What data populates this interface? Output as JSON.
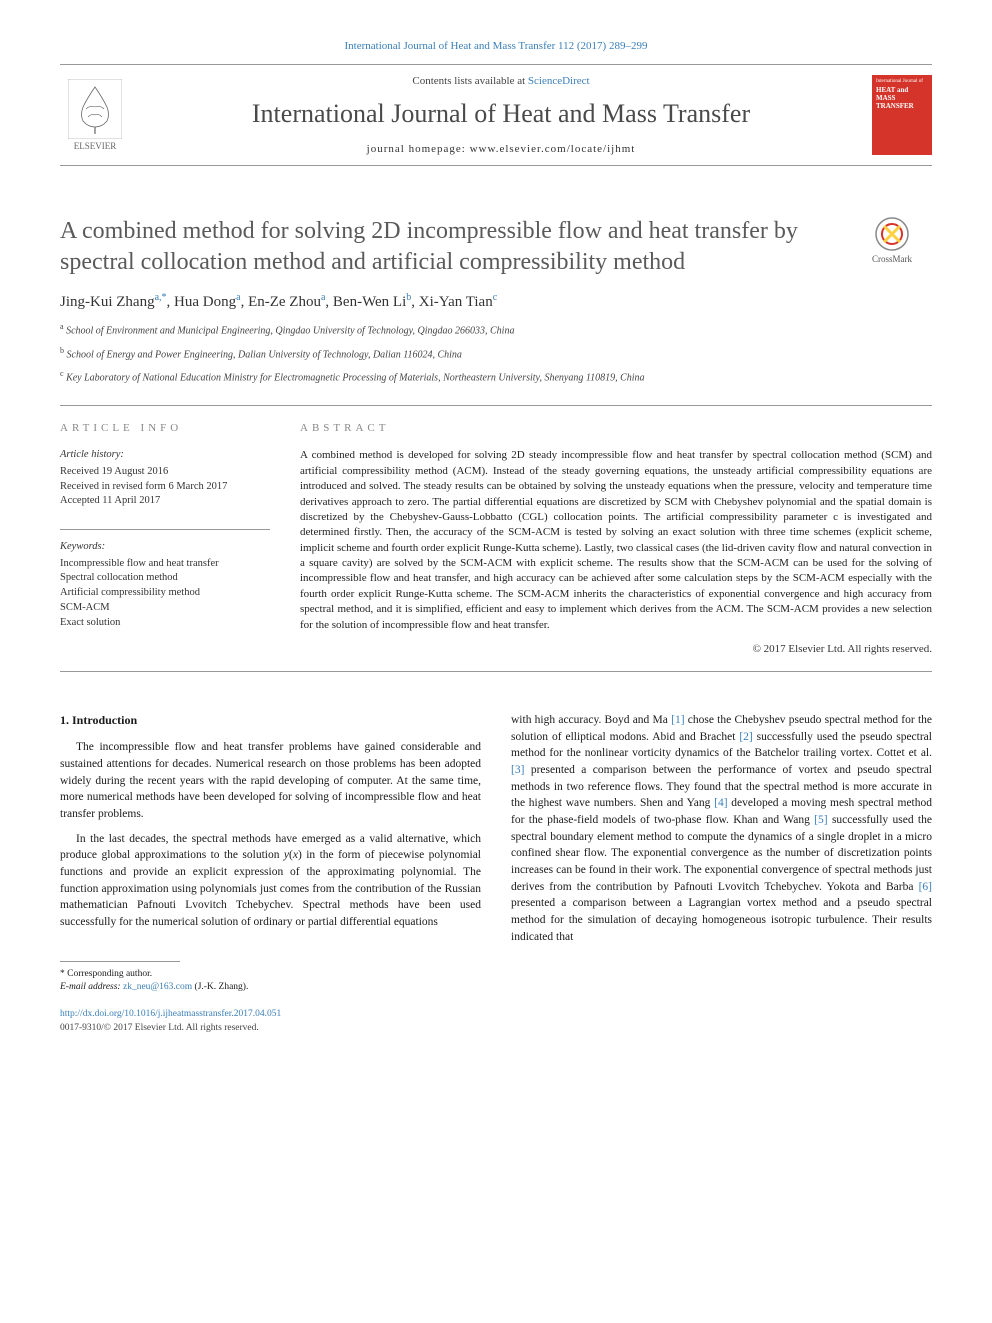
{
  "top_citation": "International Journal of Heat and Mass Transfer 112 (2017) 289–299",
  "header": {
    "contents_prefix": "Contents lists available at ",
    "contents_link": "ScienceDirect",
    "journal_name": "International Journal of Heat and Mass Transfer",
    "homepage_prefix": "journal homepage: ",
    "homepage_url": "www.elsevier.com/locate/ijhmt",
    "elsevier_label": "ELSEVIER",
    "cover_top": "International Journal of",
    "cover_line1": "HEAT and MASS",
    "cover_line2": "TRANSFER"
  },
  "crossmark_label": "CrossMark",
  "article": {
    "title": "A combined method for solving 2D incompressible flow and heat transfer by spectral collocation method and artificial compressibility method",
    "authors_html": "Jing-Kui Zhang|a,*|, Hua Dong|a|, En-Ze Zhou|a|, Ben-Wen Li|b|, Xi-Yan Tian|c|",
    "affiliations": [
      {
        "sup": "a",
        "text": "School of Environment and Municipal Engineering, Qingdao University of Technology, Qingdao 266033, China"
      },
      {
        "sup": "b",
        "text": "School of Energy and Power Engineering, Dalian University of Technology, Dalian 116024, China"
      },
      {
        "sup": "c",
        "text": "Key Laboratory of National Education Ministry for Electromagnetic Processing of Materials, Northeastern University, Shenyang 110819, China"
      }
    ]
  },
  "info": {
    "label": "ARTICLE INFO",
    "history_label": "Article history:",
    "history": [
      "Received 19 August 2016",
      "Received in revised form 6 March 2017",
      "Accepted 11 April 2017"
    ],
    "keywords_label": "Keywords:",
    "keywords": [
      "Incompressible flow and heat transfer",
      "Spectral collocation method",
      "Artificial compressibility method",
      "SCM-ACM",
      "Exact solution"
    ]
  },
  "abstract": {
    "label": "ABSTRACT",
    "text": "A combined method is developed for solving 2D steady incompressible flow and heat transfer by spectral collocation method (SCM) and artificial compressibility method (ACM). Instead of the steady governing equations, the unsteady artificial compressibility equations are introduced and solved. The steady results can be obtained by solving the unsteady equations when the pressure, velocity and temperature time derivatives approach to zero. The partial differential equations are discretized by SCM with Chebyshev polynomial and the spatial domain is discretized by the Chebyshev-Gauss-Lobbatto (CGL) collocation points. The artificial compressibility parameter c is investigated and determined firstly. Then, the accuracy of the SCM-ACM is tested by solving an exact solution with three time schemes (explicit scheme, implicit scheme and fourth order explicit Runge-Kutta scheme). Lastly, two classical cases (the lid-driven cavity flow and natural convection in a square cavity) are solved by the SCM-ACM with explicit scheme. The results show that the SCM-ACM can be used for the solving of incompressible flow and heat transfer, and high accuracy can be achieved after some calculation steps by the SCM-ACM especially with the fourth order explicit Runge-Kutta scheme. The SCM-ACM inherits the characteristics of exponential convergence and high accuracy from spectral method, and it is simplified, efficient and easy to implement which derives from the ACM. The SCM-ACM provides a new selection for the solution of incompressible flow and heat transfer.",
    "copyright": "© 2017 Elsevier Ltd. All rights reserved."
  },
  "body": {
    "section_heading": "1. Introduction",
    "left_paragraphs": [
      "The incompressible flow and heat transfer problems have gained considerable and sustained attentions for decades. Numerical research on those problems has been adopted widely during the recent years with the rapid developing of computer. At the same time, more numerical methods have been developed for solving of incompressible flow and heat transfer problems.",
      "In the last decades, the spectral methods have emerged as a valid alternative, which produce global approximations to the solution y(x) in the form of piecewise polynomial functions and provide an explicit expression of the approximating polynomial. The function approximation using polynomials just comes from the contribution of the Russian mathematician Pafnouti Lvovitch Tchebychev. Spectral methods have been used successfully for the numerical solution of ordinary or partial differential equations"
    ],
    "right_paragraph": "with high accuracy. Boyd and Ma [1] chose the Chebyshev pseudo spectral method for the solution of elliptical modons. Abid and Brachet [2] successfully used the pseudo spectral method for the nonlinear vorticity dynamics of the Batchelor trailing vortex. Cottet et al. [3] presented a comparison between the performance of vortex and pseudo spectral methods in two reference flows. They found that the spectral method is more accurate in the highest wave numbers. Shen and Yang [4] developed a moving mesh spectral method for the phase-field models of two-phase flow. Khan and Wang [5] successfully used the spectral boundary element method to compute the dynamics of a single droplet in a micro confined shear flow. The exponential convergence as the number of discretization points increases can be found in their work. The exponential convergence of spectral methods just derives from the contribution by Pafnouti Lvovitch Tchebychev. Yokota and Barba [6] presented a comparison between a Lagrangian vortex method and a pseudo spectral method for the simulation of decaying homogeneous isotropic turbulence. Their results indicated that"
  },
  "footnote": {
    "corresponding": "* Corresponding author.",
    "email_label": "E-mail address: ",
    "email": "zk_neu@163.com",
    "email_suffix": " (J.-K. Zhang)."
  },
  "doi": {
    "url": "http://dx.doi.org/10.1016/j.ijheatmasstransfer.2017.04.051",
    "issn_line": "0017-9310/© 2017 Elsevier Ltd. All rights reserved."
  },
  "colors": {
    "link": "#3a7fb8",
    "journal_cover": "#d4342a",
    "title_gray": "#5a5a5a",
    "border": "#999999"
  }
}
